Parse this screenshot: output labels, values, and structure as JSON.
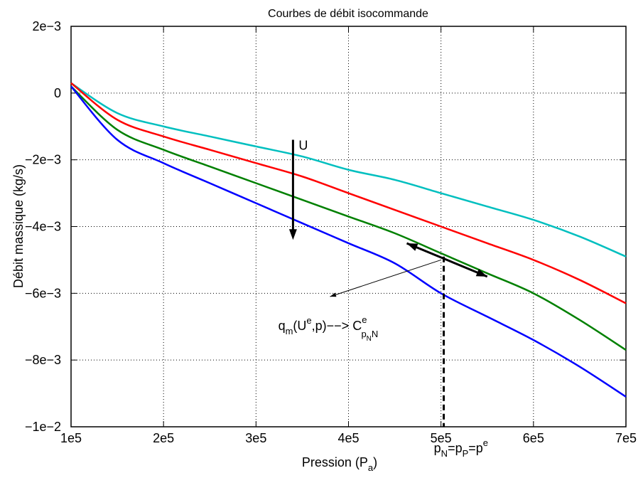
{
  "chart_data": {
    "type": "line",
    "title": "Courbes de débit isocommande",
    "xlabel": {
      "main": "Pression (P",
      "sub": "a",
      "close": ")"
    },
    "ylabel": "Débit massique (kg/s)",
    "xlim": [
      100000,
      700000
    ],
    "ylim": [
      -0.01,
      0.002
    ],
    "grid": true,
    "x_ticks": [
      {
        "value": 100000,
        "label": "1e5"
      },
      {
        "value": 200000,
        "label": "2e5"
      },
      {
        "value": 300000,
        "label": "3e5"
      },
      {
        "value": 400000,
        "label": "4e5"
      },
      {
        "value": 500000,
        "label": "5e5"
      },
      {
        "value": 600000,
        "label": "6e5"
      },
      {
        "value": 700000,
        "label": "7e5"
      }
    ],
    "y_ticks": [
      {
        "value": 0.002,
        "label": "2e−3"
      },
      {
        "value": 0,
        "label": "0"
      },
      {
        "value": -0.002,
        "label": "−2e−3"
      },
      {
        "value": -0.004,
        "label": "−4e−3"
      },
      {
        "value": -0.006,
        "label": "−6e−3"
      },
      {
        "value": -0.008,
        "label": "−8e−3"
      },
      {
        "value": -0.01,
        "label": "−1e−2"
      }
    ],
    "x": [
      100000,
      150000,
      200000,
      250000,
      300000,
      350000,
      400000,
      450000,
      500000,
      550000,
      600000,
      650000,
      700000
    ],
    "series": [
      {
        "color": "#00bfbf",
        "values": [
          0.0003,
          -0.0006,
          -0.001,
          -0.0013,
          -0.0016,
          -0.0019,
          -0.0023,
          -0.0026,
          -0.003,
          -0.0034,
          -0.0038,
          -0.0043,
          -0.0049
        ]
      },
      {
        "color": "#ff0000",
        "values": [
          0.0003,
          -0.0008,
          -0.0013,
          -0.0017,
          -0.0021,
          -0.0025,
          -0.003,
          -0.0035,
          -0.004,
          -0.0045,
          -0.005,
          -0.0056,
          -0.0063
        ]
      },
      {
        "color": "#008000",
        "values": [
          0.0002,
          -0.0011,
          -0.0017,
          -0.0022,
          -0.0027,
          -0.0032,
          -0.0037,
          -0.0042,
          -0.0048,
          -0.0054,
          -0.006,
          -0.0068,
          -0.0077
        ]
      },
      {
        "color": "#0000ff",
        "values": [
          0.0002,
          -0.0014,
          -0.0021,
          -0.0027,
          -0.0033,
          -0.0039,
          -0.0045,
          -0.0051,
          -0.006,
          -0.0067,
          -0.0074,
          -0.0082,
          -0.0091
        ]
      }
    ],
    "annotations": {
      "u_arrow": {
        "x": 340000,
        "y_from": -0.0014,
        "y_to": -0.0044,
        "label": "U"
      },
      "tangent": {
        "x_from": 463000,
        "y_from": -0.0045,
        "x_to": 550000,
        "y_to": -0.0055
      },
      "pointer": {
        "x_from": 500000,
        "y_from": -0.005,
        "x_to": 380000,
        "y_to": -0.0061
      },
      "vline": {
        "x": 503000,
        "y_top": -0.0049,
        "y_bottom": -0.01
      },
      "formula": {
        "x": 324000,
        "y": -0.0071,
        "q": "q",
        "q_sub": "m",
        "open": "(U",
        "u_sup": "e",
        "rest": ",p)−−> C",
        "c_sup": "e",
        "c_sub": "p",
        "c_sub_sub": "N",
        "c_tail": "N"
      },
      "equality": {
        "x": 500000,
        "p1": "p",
        "s1": "N",
        "eq1": "=p",
        "s2": "P",
        "eq2": "=p",
        "sup": "e"
      }
    }
  }
}
